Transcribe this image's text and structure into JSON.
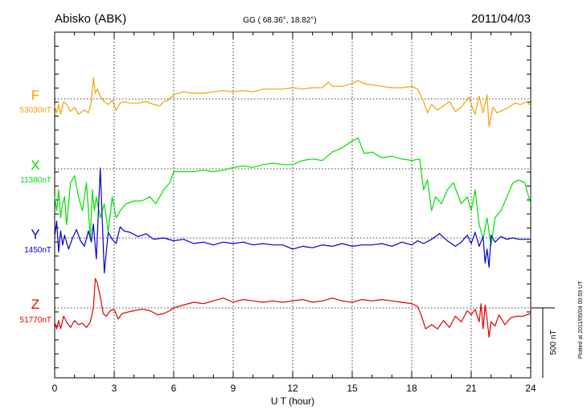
{
  "header": {
    "station": "Abisko (ABK)",
    "coords": "GG ( 68.36°,  18.82°)",
    "date": "2011/04/03"
  },
  "footer": {
    "plotted": "Plotted at 2011/05/04 00:59 UT"
  },
  "chart_data": {
    "type": "line",
    "xlabel": "U T (hour)",
    "xlim": [
      0,
      24
    ],
    "xticks": [
      0,
      3,
      6,
      9,
      12,
      15,
      18,
      21,
      24
    ],
    "scale_bar": "500 nT",
    "grid": true,
    "colors": {
      "F": "#f5a300",
      "X": "#00e000",
      "Y": "#0000d0",
      "Z": "#e00000"
    },
    "series": [
      {
        "name": "F",
        "baseline": "53030nT",
        "color": "#f5a300",
        "x": [
          0,
          0.1,
          0.2,
          0.3,
          0.45,
          0.6,
          0.8,
          1.0,
          1.2,
          1.5,
          1.7,
          1.85,
          1.95,
          2.05,
          2.15,
          2.3,
          2.5,
          2.7,
          2.9,
          3.1,
          3.3,
          3.5,
          3.8,
          4.2,
          4.6,
          5.0,
          5.3,
          5.5,
          5.7,
          6.0,
          6.5,
          7.0,
          7.5,
          8.0,
          8.5,
          9.0,
          9.5,
          10.0,
          10.5,
          11.0,
          11.5,
          12.0,
          12.5,
          13.0,
          13.5,
          13.8,
          14.0,
          14.5,
          15.0,
          15.3,
          15.6,
          16.0,
          16.5,
          17.0,
          17.5,
          18.0,
          18.3,
          18.6,
          18.8,
          19.0,
          19.3,
          19.6,
          19.9,
          20.2,
          20.5,
          20.7,
          20.9,
          21.0,
          21.2,
          21.4,
          21.6,
          21.8,
          21.9,
          22.1,
          22.3,
          22.6,
          22.9,
          23.2,
          23.5,
          23.8,
          24.0
        ],
        "values": [
          -50,
          -100,
          -40,
          -110,
          -20,
          -40,
          -90,
          -60,
          -110,
          -80,
          -100,
          -20,
          150,
          40,
          70,
          20,
          -20,
          -40,
          -10,
          -80,
          -30,
          -20,
          -30,
          -30,
          -20,
          -40,
          -50,
          -20,
          -10,
          30,
          50,
          40,
          40,
          50,
          60,
          50,
          60,
          50,
          70,
          70,
          70,
          80,
          70,
          80,
          80,
          120,
          90,
          90,
          110,
          130,
          110,
          100,
          90,
          80,
          80,
          90,
          70,
          -20,
          -100,
          -40,
          -80,
          -50,
          -20,
          -90,
          -60,
          -20,
          10,
          -40,
          -110,
          20,
          -100,
          30,
          -200,
          -60,
          -100,
          -80,
          -60,
          -30,
          -40,
          -20,
          -50
        ]
      },
      {
        "name": "X",
        "baseline": "11380nT",
        "color": "#00e000",
        "x": [
          0,
          0.1,
          0.2,
          0.3,
          0.4,
          0.5,
          0.6,
          0.8,
          1.0,
          1.2,
          1.4,
          1.6,
          1.8,
          1.9,
          2.0,
          2.1,
          2.3,
          2.5,
          2.7,
          2.9,
          3.1,
          3.3,
          3.6,
          4.0,
          4.4,
          4.8,
          5.1,
          5.3,
          5.5,
          5.8,
          6.0,
          6.5,
          7.0,
          7.5,
          8.0,
          8.5,
          9.0,
          9.5,
          10.0,
          10.5,
          11.0,
          11.5,
          12.0,
          12.5,
          13.0,
          13.5,
          14.0,
          14.5,
          15.0,
          15.3,
          15.6,
          16.0,
          16.5,
          17.0,
          17.5,
          18.0,
          18.4,
          18.6,
          18.8,
          19.0,
          19.2,
          19.5,
          19.8,
          20.1,
          20.5,
          20.8,
          21.0,
          21.2,
          21.4,
          21.6,
          21.8,
          22.0,
          22.2,
          22.5,
          22.8,
          23.1,
          23.4,
          23.7,
          24.0
        ],
        "values": [
          -200,
          -300,
          -150,
          -350,
          -250,
          -200,
          -400,
          -100,
          -50,
          -200,
          -300,
          -100,
          -500,
          -150,
          -300,
          -200,
          -350,
          -250,
          -450,
          -200,
          -350,
          -300,
          -250,
          -230,
          -230,
          -200,
          -250,
          -200,
          -150,
          -100,
          -20,
          -20,
          -20,
          -10,
          -20,
          -10,
          10,
          20,
          10,
          30,
          40,
          30,
          30,
          60,
          70,
          60,
          120,
          150,
          200,
          220,
          110,
          120,
          80,
          90,
          70,
          60,
          70,
          -150,
          -80,
          -300,
          -200,
          -250,
          -150,
          -100,
          -250,
          -200,
          -300,
          -150,
          -400,
          -500,
          -350,
          -550,
          -350,
          -300,
          -200,
          -100,
          -80,
          -100,
          -250
        ]
      },
      {
        "name": "Y",
        "baseline": "1450nT",
        "color": "#0000d0",
        "x": [
          0,
          0.1,
          0.2,
          0.3,
          0.4,
          0.5,
          0.7,
          0.9,
          1.1,
          1.3,
          1.5,
          1.7,
          1.85,
          1.95,
          2.1,
          2.3,
          2.5,
          2.7,
          2.9,
          3.1,
          3.3,
          3.5,
          3.8,
          4.2,
          4.6,
          5.0,
          5.5,
          6.0,
          6.5,
          7.0,
          7.5,
          8.0,
          8.5,
          9.0,
          9.5,
          10.0,
          10.5,
          11.0,
          11.5,
          12.0,
          12.5,
          13.0,
          13.5,
          14.0,
          14.5,
          15.0,
          15.5,
          16.0,
          16.5,
          17.0,
          17.5,
          18.0,
          18.3,
          18.6,
          19.0,
          19.4,
          19.8,
          20.2,
          20.5,
          20.8,
          21.0,
          21.2,
          21.4,
          21.6,
          21.7,
          21.8,
          21.9,
          22.0,
          22.2,
          22.5,
          22.8,
          23.1,
          23.4,
          23.7,
          24.0
        ],
        "values": [
          10,
          120,
          -100,
          50,
          -50,
          20,
          -80,
          0,
          60,
          -20,
          -60,
          50,
          -30,
          100,
          -150,
          500,
          -250,
          40,
          -10,
          -40,
          80,
          50,
          40,
          10,
          30,
          -10,
          0,
          -20,
          -10,
          -40,
          -30,
          -50,
          -30,
          -40,
          -30,
          -50,
          -40,
          -50,
          -50,
          -80,
          -60,
          -70,
          -50,
          -60,
          -40,
          -60,
          -50,
          -50,
          -40,
          -60,
          -30,
          -50,
          -20,
          -40,
          -10,
          30,
          -20,
          -60,
          -30,
          20,
          -40,
          40,
          -60,
          10,
          -180,
          -80,
          -210,
          20,
          -30,
          10,
          -10,
          0,
          -10,
          -10,
          -10
        ]
      },
      {
        "name": "Z",
        "baseline": "51770nT",
        "color": "#e00000",
        "x": [
          0,
          0.1,
          0.2,
          0.3,
          0.45,
          0.6,
          0.8,
          1.0,
          1.2,
          1.4,
          1.6,
          1.8,
          1.95,
          2.05,
          2.15,
          2.3,
          2.45,
          2.6,
          2.8,
          3.0,
          3.2,
          3.4,
          3.7,
          4.0,
          4.4,
          4.8,
          5.2,
          5.5,
          5.8,
          6.0,
          6.5,
          7.0,
          7.5,
          8.0,
          8.5,
          9.0,
          9.5,
          10.0,
          10.5,
          11.0,
          11.5,
          12.0,
          12.5,
          13.0,
          13.5,
          14.0,
          14.5,
          15.0,
          15.5,
          16.0,
          16.5,
          17.0,
          17.5,
          18.0,
          18.3,
          18.5,
          18.7,
          19.0,
          19.3,
          19.6,
          19.9,
          20.2,
          20.5,
          20.8,
          21.0,
          21.2,
          21.4,
          21.5,
          21.6,
          21.7,
          21.8,
          21.9,
          22.0,
          22.2,
          22.4,
          22.7,
          23.0,
          23.3,
          23.6,
          24.0
        ],
        "values": [
          -100,
          -150,
          -90,
          -150,
          -60,
          -100,
          -140,
          -90,
          -120,
          -110,
          -140,
          -100,
          0,
          210,
          180,
          80,
          -40,
          -60,
          -20,
          -10,
          -80,
          -40,
          -30,
          -20,
          -10,
          -20,
          -50,
          -40,
          -20,
          0,
          20,
          40,
          30,
          50,
          70,
          40,
          60,
          50,
          40,
          50,
          40,
          50,
          60,
          40,
          50,
          70,
          50,
          40,
          60,
          50,
          60,
          50,
          40,
          30,
          10,
          -60,
          -150,
          -120,
          -150,
          -90,
          -140,
          -60,
          -100,
          -20,
          -50,
          -10,
          -100,
          30,
          -150,
          20,
          -80,
          -210,
          -100,
          -130,
          -50,
          -120,
          -70,
          -60,
          -60,
          -40
        ]
      }
    ]
  }
}
